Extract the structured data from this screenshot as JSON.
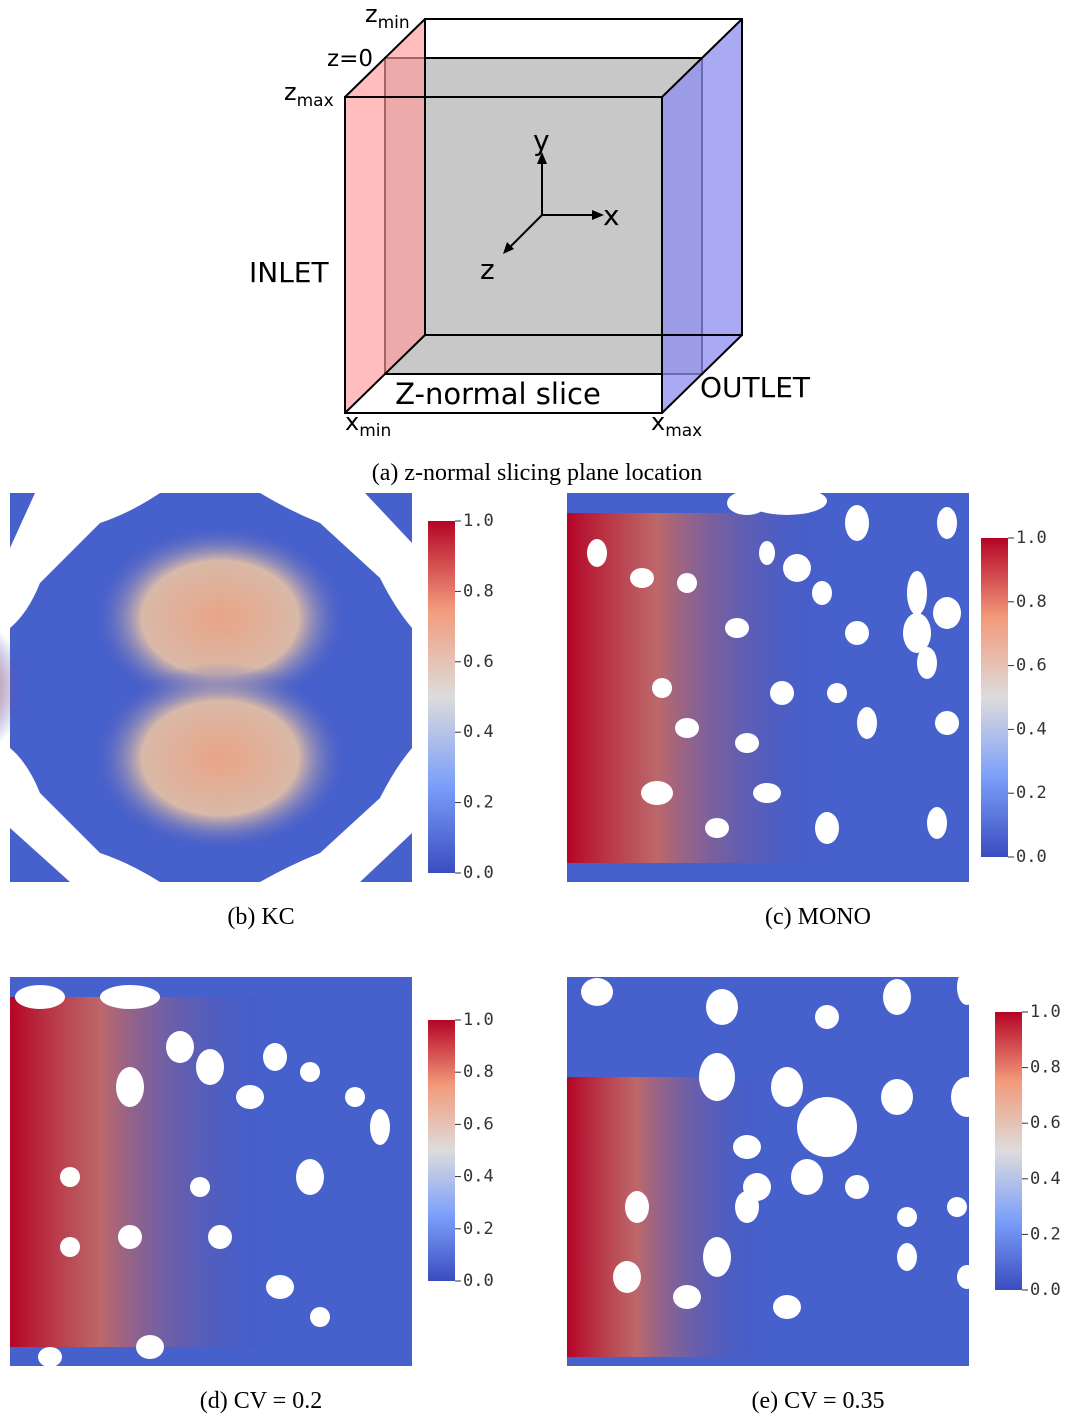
{
  "diagram": {
    "z_min": {
      "base": "z",
      "sub": "min"
    },
    "z_zero": "z=0",
    "z_max": {
      "base": "z",
      "sub": "max"
    },
    "axis_y": "y",
    "axis_x": "x",
    "axis_z": "z",
    "inlet": "INLET",
    "slice": "Z-normal slice",
    "outlet": "OUTLET",
    "x_min": {
      "base": "x",
      "sub": "min"
    },
    "x_max": {
      "base": "x",
      "sub": "max"
    },
    "caption": "(a) z-normal slicing plane location"
  },
  "panels": [
    {
      "caption": "(b) KC",
      "colorbar": {
        "lim": [
          0,
          1
        ],
        "ticks": [
          {
            "value": 0,
            "label": "0.0"
          },
          0.2,
          0.4,
          0.6,
          0.8,
          {
            "value": 1,
            "label": "1.0"
          }
        ]
      }
    },
    {
      "caption": "(c) MONO",
      "colorbar": {
        "lim": [
          0,
          1
        ],
        "ticks": [
          {
            "value": 0,
            "label": "0.0"
          },
          0.2,
          0.4,
          0.6,
          0.8,
          {
            "value": 1,
            "label": "1.0"
          }
        ]
      }
    },
    {
      "caption": "(d) CV = 0.2",
      "colorbar": {
        "lim": [
          0,
          1
        ],
        "ticks": [
          {
            "value": 0,
            "label": "0.0"
          },
          0.2,
          0.4,
          0.6,
          0.8,
          {
            "value": 1,
            "label": "1.0"
          }
        ]
      }
    },
    {
      "caption": "(e) CV = 0.35",
      "colorbar": {
        "lim": [
          0,
          1
        ],
        "ticks": [
          {
            "value": 0,
            "label": "0.0"
          },
          0.2,
          0.4,
          0.6,
          0.8,
          {
            "value": 1,
            "label": "1.0"
          }
        ]
      }
    }
  ]
}
